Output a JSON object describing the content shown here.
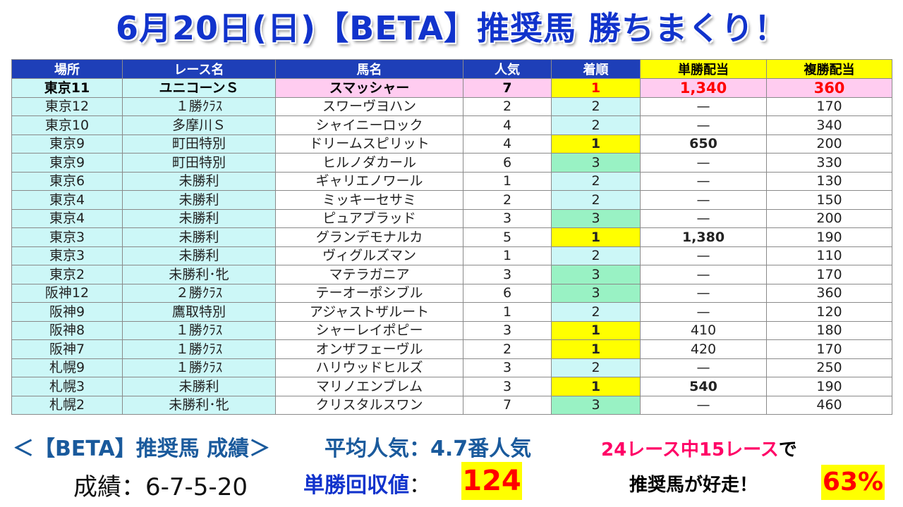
{
  "title": "6月20日(日)【BETA】推奨馬 勝ちまくり！",
  "table": {
    "headers": [
      "場所",
      "レース名",
      "馬名",
      "人気",
      "着順",
      "単勝配当",
      "複勝配当"
    ],
    "rows": [
      {
        "venue": "東京11",
        "race": "ユニコーンＳ",
        "horse": "スマッシャー",
        "pop": "7",
        "pos": "1",
        "win": "1,340",
        "place": "360",
        "feature": true
      },
      {
        "venue": "東京12",
        "race": "１勝ｸﾗｽ",
        "horse": "スワーヴヨハン",
        "pop": "2",
        "pos": "2",
        "win": "—",
        "place": "170"
      },
      {
        "venue": "東京10",
        "race": "多摩川Ｓ",
        "horse": "シャイニーロック",
        "pop": "4",
        "pos": "2",
        "win": "—",
        "place": "340",
        "place_red": true
      },
      {
        "venue": "東京9",
        "race": "町田特別",
        "horse": "ドリームスピリット",
        "pop": "4",
        "pos": "1",
        "win": "650",
        "place": "200",
        "win_big": true
      },
      {
        "venue": "東京9",
        "race": "町田特別",
        "horse": "ヒルノダカール",
        "pop": "6",
        "pos": "3",
        "win": "—",
        "place": "330",
        "place_red": true
      },
      {
        "venue": "東京6",
        "race": "未勝利",
        "horse": "ギャリエノワール",
        "pop": "1",
        "pos": "2",
        "win": "—",
        "place": "130"
      },
      {
        "venue": "東京4",
        "race": "未勝利",
        "horse": "ミッキーセサミ",
        "pop": "2",
        "pos": "2",
        "win": "—",
        "place": "150"
      },
      {
        "venue": "東京4",
        "race": "未勝利",
        "horse": "ピュアブラッド",
        "pop": "3",
        "pos": "3",
        "win": "—",
        "place": "200"
      },
      {
        "venue": "東京3",
        "race": "未勝利",
        "horse": "グランデモナルカ",
        "pop": "5",
        "pos": "1",
        "win": "1,380",
        "place": "190",
        "win_big": true
      },
      {
        "venue": "東京3",
        "race": "未勝利",
        "horse": "ヴィグルズマン",
        "pop": "1",
        "pos": "2",
        "win": "—",
        "place": "110"
      },
      {
        "venue": "東京2",
        "race": "未勝利･牝",
        "horse": "マテラガニア",
        "pop": "3",
        "pos": "3",
        "win": "—",
        "place": "170"
      },
      {
        "venue": "阪神12",
        "race": "２勝ｸﾗｽ",
        "horse": "テーオーポシブル",
        "pop": "6",
        "pos": "3",
        "win": "—",
        "place": "360",
        "place_red": true
      },
      {
        "venue": "阪神9",
        "race": "鷹取特別",
        "horse": "アジャストザルート",
        "pop": "1",
        "pos": "2",
        "win": "—",
        "place": "120"
      },
      {
        "venue": "阪神8",
        "race": "１勝ｸﾗｽ",
        "horse": "シャーレイポピー",
        "pop": "3",
        "pos": "1",
        "win": "410",
        "place": "180"
      },
      {
        "venue": "阪神7",
        "race": "１勝ｸﾗｽ",
        "horse": "オンザフェーヴル",
        "pop": "2",
        "pos": "1",
        "win": "420",
        "place": "170"
      },
      {
        "venue": "札幌9",
        "race": "１勝ｸﾗｽ",
        "horse": "ハリウッドヒルズ",
        "pop": "3",
        "pos": "2",
        "win": "—",
        "place": "250",
        "place_red": true
      },
      {
        "venue": "札幌3",
        "race": "未勝利",
        "horse": "マリノエンブレム",
        "pop": "3",
        "pos": "1",
        "win": "540",
        "place": "190",
        "win_big": true
      },
      {
        "venue": "札幌2",
        "race": "未勝利･牝",
        "horse": "クリスタルスワン",
        "pop": "7",
        "pos": "3",
        "win": "—",
        "place": "460",
        "place_red": true
      }
    ]
  },
  "summary": {
    "title": "＜【BETA】推奨馬 成績＞",
    "avg_popularity": "平均人気：4.7番人気",
    "races_prefix": "24レース中15レース",
    "races_suffix": "で",
    "record": "成績：6-7-5-20",
    "roi_label": "単勝回収値",
    "roi_colon": "：",
    "roi_value": "124",
    "good_run": "推奨馬が好走！",
    "percent": "63%"
  },
  "colors": {
    "title": "#1133cc",
    "header_bg": "#1e3fb8",
    "header_highlight": "#ffff00",
    "venue_bg": "#ccf7f7",
    "win_bg": "#ffff00",
    "third_bg": "#99f2c4",
    "feature_bg": "#ffccf0",
    "payout_red": "#ff0000"
  }
}
